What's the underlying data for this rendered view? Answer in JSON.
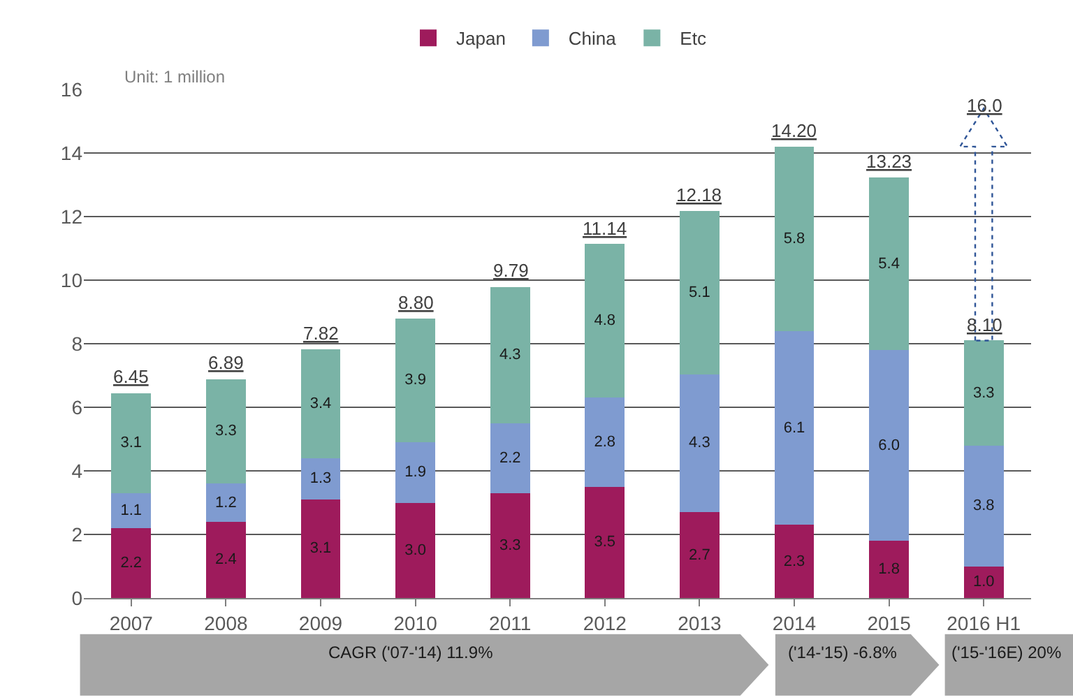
{
  "chart_data": {
    "type": "bar",
    "stacked": true,
    "categories": [
      "2007",
      "2008",
      "2009",
      "2010",
      "2011",
      "2012",
      "2013",
      "2014",
      "2015",
      "2016 H1"
    ],
    "series": [
      {
        "name": "Japan",
        "color": "#9e1b5c",
        "values": [
          2.2,
          2.4,
          3.1,
          3.0,
          3.3,
          3.5,
          2.7,
          2.3,
          1.8,
          1.0
        ],
        "value_labels": [
          "2.2",
          "2.4",
          "3.1",
          "3.0",
          "3.3",
          "3.5",
          "2.7",
          "2.3",
          "1.8",
          "1.0"
        ]
      },
      {
        "name": "China",
        "color": "#7f9bd0",
        "values": [
          1.1,
          1.2,
          1.3,
          1.9,
          2.2,
          2.8,
          4.34,
          6.1,
          6.0,
          3.8
        ],
        "value_labels": [
          "1.1",
          "1.2",
          "1.3",
          "1.9",
          "2.2",
          "2.8",
          "4.3",
          "6.1",
          "6.0",
          "3.8"
        ]
      },
      {
        "name": "Etc",
        "color": "#7ab3a6",
        "values": [
          3.15,
          3.29,
          3.42,
          3.9,
          4.29,
          4.84,
          5.14,
          5.8,
          5.43,
          3.3
        ],
        "value_labels": [
          "3.1",
          "3.3",
          "3.4",
          "3.9",
          "4.3",
          "4.8",
          "5.1",
          "5.8",
          "5.4",
          "3.3"
        ]
      }
    ],
    "totals": [
      "6.45",
      "6.89",
      "7.82",
      "8.80",
      "9.79",
      "11.14",
      "12.18",
      "14.20",
      "13.23",
      "8.10"
    ],
    "ylim": [
      0,
      16
    ],
    "yticks": [
      0,
      2,
      4,
      6,
      8,
      10,
      12,
      14,
      16
    ],
    "grid": "y",
    "legend": "top",
    "annotations": [
      "Unit: 1 million",
      "16.0",
      "CAGR ('07-'14) 11.9%",
      "('14-'15) -6.8%",
      "('15-'16E) 20%"
    ]
  }
}
